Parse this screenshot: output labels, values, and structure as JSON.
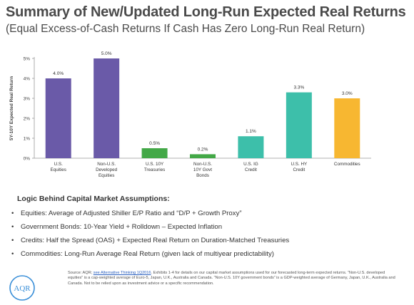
{
  "header": {
    "title": "Summary of New/Updated Long-Run Expected Real Returns",
    "subtitle": "(Equal Excess-of-Cash Returns If Cash Has Zero Long-Run Real Return)"
  },
  "chart_data": {
    "type": "bar",
    "ylabel": "5Y-10Y Expected Real Return",
    "ylim": [
      0,
      5
    ],
    "yticks": [
      "0%",
      "1%",
      "2%",
      "3%",
      "4%",
      "5%"
    ],
    "grid": false,
    "categories": [
      [
        "U.S.",
        "Equities"
      ],
      [
        "Non-U.S.",
        "Developed",
        "Equities"
      ],
      [
        "U.S. 10Y",
        "Treasuries"
      ],
      [
        "Non-U.S.",
        "10Y Govt",
        "Bonds"
      ],
      [
        "U.S. IG",
        "Credit"
      ],
      [
        "U.S. HY",
        "Credit"
      ],
      [
        "Commodities"
      ]
    ],
    "values": [
      4.0,
      5.0,
      0.5,
      0.2,
      1.1,
      3.3,
      3.0
    ],
    "data_labels": [
      "4.0%",
      "5.0%",
      "0.5%",
      "0.2%",
      "1.1%",
      "3.3%",
      "3.0%"
    ],
    "colors": [
      "#6a5aa8",
      "#6a5aa8",
      "#43a847",
      "#43a847",
      "#3dbfaa",
      "#3dbfaa",
      "#f7b731"
    ]
  },
  "logic": {
    "title": "Logic Behind Capital Market Assumptions:",
    "bullet_glyph": "•",
    "items": [
      "Equities: Average of Adjusted Shiller E/P Ratio and “D/P + Growth Proxy”",
      "Government Bonds: 10-Year Yield + Rolldown – Expected Inflation",
      "Credits: Half the Spread (OAS) + Expected Real Return on Duration-Matched Treasuries",
      "Commodities: Long-Run Average Real Return (given lack of multiyear predictability)"
    ]
  },
  "footer": {
    "logo_text": "AQR",
    "source_prefix": "Source: AQR; ",
    "source_link": "see Alternative Thinking 1Q2016",
    "source_rest": ". Exhibits 1-4 for details on our capital market assumptions used for our forecasted long-term expected returns. “Non-U.S. developed equities” is a cap-weighted average of Euro-5, Japan, U.K., Australia and Canada. “Non-U.S. 10Y government bonds” is a GDP-weighted average of Germany, Japan, U.K., Australia and Canada. Not to be relied upon as investment advice or a specific recommendation."
  },
  "colors": {
    "purple": "#6a5aa8",
    "green": "#43a847",
    "teal": "#3dbfaa",
    "gold": "#f7b731",
    "title_gray": "#4a4a4a",
    "logo_blue": "#3a8fd8"
  }
}
